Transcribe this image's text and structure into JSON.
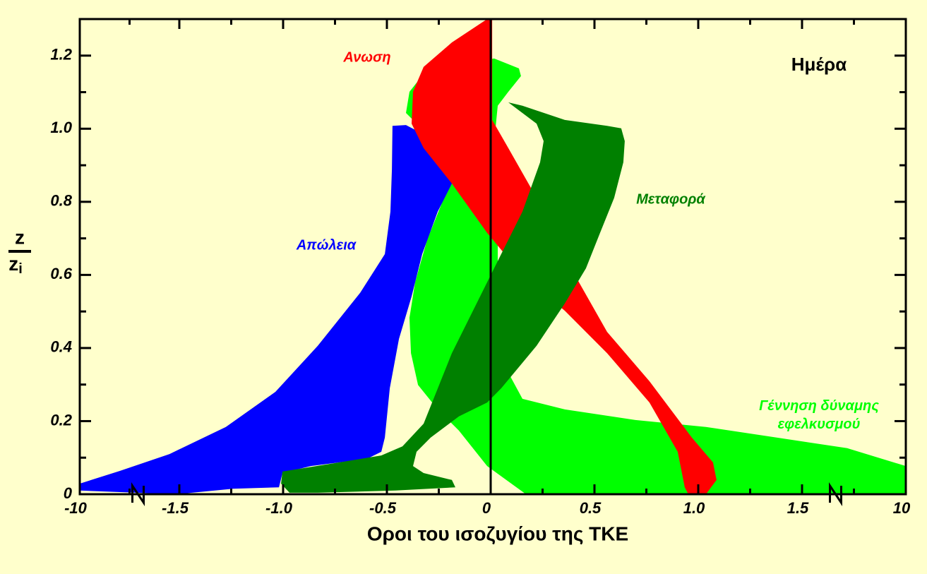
{
  "chart_data": {
    "type": "band",
    "xlabel": "Οροι του ισοζυγίου της ΤΚΕ",
    "ylabel_numerator": "z",
    "ylabel_denominator": "z",
    "ylabel_subscript": "i",
    "annotation": "Ημέρα",
    "xlim": [
      -10,
      10
    ],
    "xticks": [
      -10,
      -1.5,
      {
        "value": -1,
        "label": "-1.0"
      },
      -0.5,
      0,
      0.5,
      {
        "value": 1,
        "label": "1.0"
      },
      1.5,
      10
    ],
    "ylim": [
      0,
      1.3
    ],
    "yticks": [
      0,
      0.2,
      0.4,
      0.6,
      0.8,
      {
        "value": 1,
        "label": "1.0"
      },
      1.2
    ],
    "axis_break": true,
    "zero_line": true,
    "grid": false,
    "series": [
      {
        "name": "Γέννηση δύναμης εφελκυσμού",
        "color": "#00ff00",
        "x": [
          0.17,
          10,
          10,
          5.2,
          1.378,
          1.037,
          0.697,
          0.357,
          0.153,
          0.034,
          0.034,
          0.034,
          0.017,
          0.034,
          0.085,
          0.146,
          0.136,
          0.017,
          -0.153,
          -0.323,
          -0.391,
          -0.408,
          -0.323,
          -0.221,
          -0.187,
          -0.238,
          -0.306,
          -0.364,
          -0.391,
          -0.384,
          -0.35,
          -0.255,
          -0.153,
          -0.017
        ],
        "y": [
          0,
          0,
          0.077,
          0.126,
          0.155,
          0.184,
          0.203,
          0.232,
          0.261,
          0.386,
          0.618,
          0.773,
          0.966,
          1.063,
          1.101,
          1.144,
          1.165,
          1.192,
          1.179,
          1.15,
          1.101,
          1.043,
          0.995,
          0.927,
          0.869,
          0.792,
          0.696,
          0.58,
          0.483,
          0.386,
          0.299,
          0.232,
          0.174,
          0.077
        ]
      },
      {
        "name": "Απώλεια",
        "color": "#0000ff",
        "x": [
          -10,
          -6.56,
          -2.34,
          -1.276,
          -1.037,
          -0.833,
          -0.629,
          -0.51,
          -0.483,
          -0.476,
          -0.473,
          -0.408,
          -0.323,
          -0.221,
          -0.187,
          -0.255,
          -0.33,
          -0.381,
          -0.442,
          -0.486,
          -0.51,
          -0.527,
          -0.595,
          -0.867,
          -1.003,
          -1.02,
          -1.241,
          -1.74,
          -10
        ],
        "y": [
          0.029,
          0.064,
          0.11,
          0.184,
          0.28,
          0.406,
          0.551,
          0.657,
          0.773,
          0.889,
          1.008,
          1.01,
          0.985,
          0.908,
          0.85,
          0.773,
          0.657,
          0.541,
          0.425,
          0.29,
          0.155,
          0.116,
          0.097,
          0.077,
          0.058,
          0.019,
          0.015,
          0,
          0.01
        ]
      },
      {
        "name": "Ανωση",
        "color": "#ff0000",
        "x": [
          -0.017,
          -0.187,
          -0.323,
          -0.374,
          -0.381,
          -0.323,
          -0.187,
          -0.017,
          0.153,
          0.357,
          0.561,
          0.765,
          0.901,
          0.935,
          0.952,
          1.037,
          1.088,
          1.071,
          0.969,
          0.765,
          0.561,
          0.425,
          0.323,
          0.221,
          0.085,
          0.007,
          0.007
        ],
        "y": [
          1.3,
          1.236,
          1.169,
          1.101,
          1.014,
          0.947,
          0.85,
          0.715,
          0.599,
          0.502,
          0.386,
          0.251,
          0.116,
          0.019,
          0,
          0,
          0.039,
          0.087,
          0.155,
          0.309,
          0.444,
          0.58,
          0.696,
          0.811,
          0.947,
          1.024,
          1.3
        ]
      },
      {
        "name": "Μεταφορά",
        "color": "#008000",
        "x": [
          -1.003,
          -0.731,
          -0.527,
          -0.425,
          -0.323,
          -0.187,
          -0.017,
          0.153,
          0.238,
          0.255,
          0.221,
          0.085,
          0.153,
          0.357,
          0.561,
          0.629,
          0.646,
          0.639,
          0.595,
          0.527,
          0.459,
          0.357,
          0.221,
          0.051,
          -0.017,
          -0.153,
          -0.289,
          -0.357,
          -0.374,
          -0.323,
          -0.187,
          -0.17,
          -0.459,
          -0.833,
          -0.969,
          -1.01
        ],
        "y": [
          0.062,
          0.087,
          0.106,
          0.131,
          0.193,
          0.386,
          0.58,
          0.773,
          0.908,
          0.966,
          1.014,
          1.072,
          1.063,
          1.024,
          1.008,
          1.001,
          0.966,
          0.908,
          0.811,
          0.715,
          0.618,
          0.522,
          0.406,
          0.29,
          0.251,
          0.213,
          0.155,
          0.116,
          0.077,
          0.058,
          0.039,
          0.019,
          0.01,
          0.004,
          0.004,
          0.029
        ]
      }
    ]
  }
}
